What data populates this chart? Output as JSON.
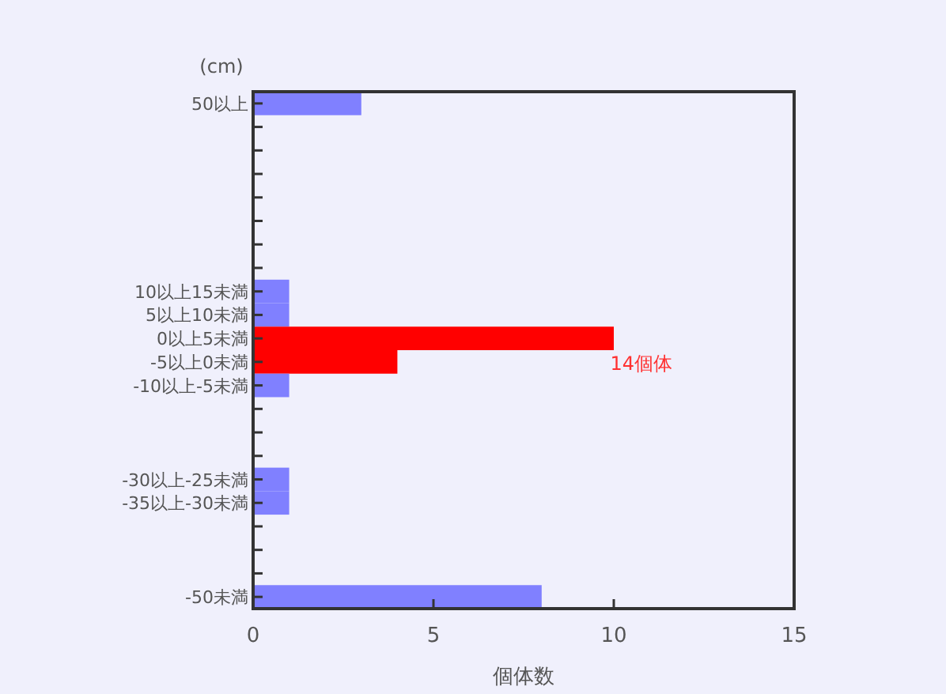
{
  "chart_data": {
    "type": "bar",
    "orientation": "horizontal",
    "ylabel": "(cm)",
    "xlabel": "個体数",
    "categories": [
      "50以上",
      null,
      null,
      null,
      null,
      null,
      null,
      null,
      "10以上15未満",
      "5以上10未満",
      "0以上5未満",
      "-5以上0未満",
      "-10以上-5未満",
      null,
      null,
      null,
      "-30以上-25未満",
      "-35以上-30未満",
      null,
      null,
      null,
      "-50未満"
    ],
    "values": [
      3,
      null,
      null,
      null,
      null,
      null,
      null,
      null,
      1,
      1,
      10,
      4,
      1,
      null,
      null,
      null,
      1,
      1,
      null,
      null,
      null,
      8
    ],
    "colors": [
      "#8080ff",
      null,
      null,
      null,
      null,
      null,
      null,
      null,
      "#8080ff",
      "#8080ff",
      "#ff0000",
      "#ff0000",
      "#8080ff",
      null,
      null,
      null,
      "#8080ff",
      "#8080ff",
      null,
      null,
      null,
      "#8080ff"
    ],
    "xlim": [
      0,
      15
    ],
    "xticks": [
      0,
      5,
      10,
      15
    ],
    "grid": false,
    "annotations": [
      "14個体"
    ]
  }
}
